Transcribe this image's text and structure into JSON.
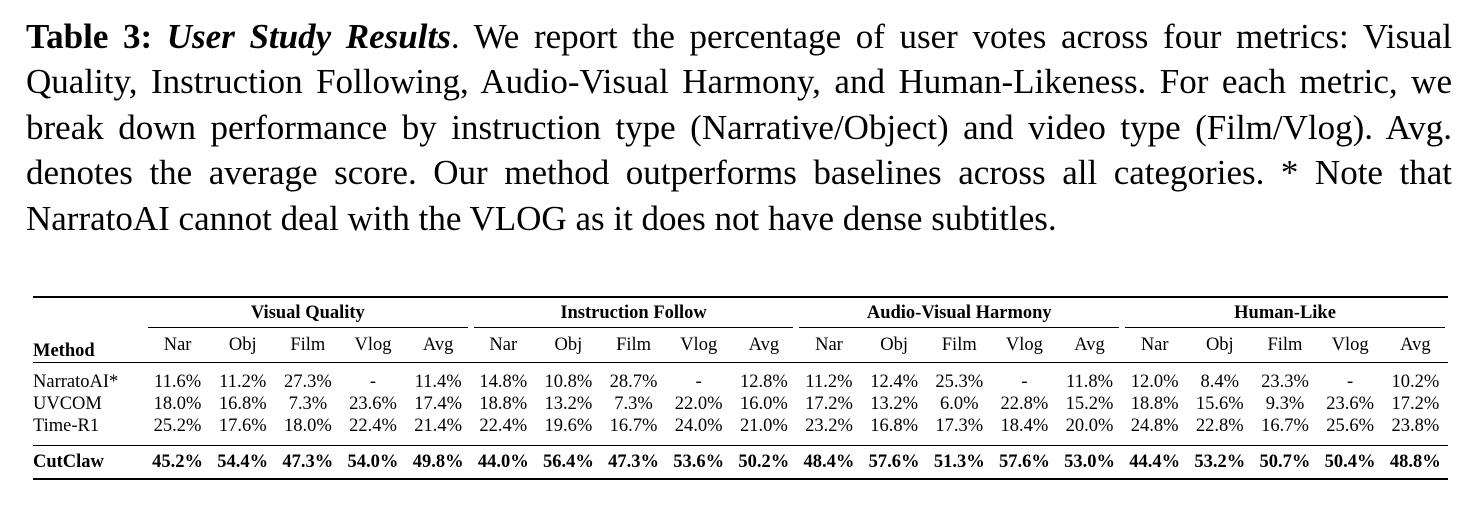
{
  "caption": {
    "label": "Table 3:",
    "title": "User Study Results",
    "body": ". We report the percentage of user votes across four metrics: Visual Quality, Instruction Following, Audio-Visual Harmony, and Human-Likeness. For each metric, we break down performance by instruction type (Narrative/Object) and video type (Film/Vlog). Avg. denotes the average score. Our method outperforms baselines across all categories. * Note that NarratoAI cannot deal with the VLOG as it does not have dense subtitles."
  },
  "table": {
    "method_header": "Method",
    "groups": [
      "Visual Quality",
      "Instruction Follow",
      "Audio-Visual Harmony",
      "Human-Like"
    ],
    "subheaders": [
      "Nar",
      "Obj",
      "Film",
      "Vlog",
      "Avg"
    ],
    "rows": [
      {
        "method": "NarratoAI*",
        "values": [
          "11.6%",
          "11.2%",
          "27.3%",
          "-",
          "11.4%",
          "14.8%",
          "10.8%",
          "28.7%",
          "-",
          "12.8%",
          "11.2%",
          "12.4%",
          "25.3%",
          "-",
          "11.8%",
          "12.0%",
          "8.4%",
          "23.3%",
          "-",
          "10.2%"
        ]
      },
      {
        "method": "UVCOM",
        "values": [
          "18.0%",
          "16.8%",
          "7.3%",
          "23.6%",
          "17.4%",
          "18.8%",
          "13.2%",
          "7.3%",
          "22.0%",
          "16.0%",
          "17.2%",
          "13.2%",
          "6.0%",
          "22.8%",
          "15.2%",
          "18.8%",
          "15.6%",
          "9.3%",
          "23.6%",
          "17.2%"
        ]
      },
      {
        "method": "Time-R1",
        "values": [
          "25.2%",
          "17.6%",
          "18.0%",
          "22.4%",
          "21.4%",
          "22.4%",
          "19.6%",
          "16.7%",
          "24.0%",
          "21.0%",
          "23.2%",
          "16.8%",
          "17.3%",
          "18.4%",
          "20.0%",
          "24.8%",
          "22.8%",
          "16.7%",
          "25.6%",
          "23.8%"
        ]
      }
    ],
    "best_row": {
      "method": "CutClaw",
      "values": [
        "45.2%",
        "54.4%",
        "47.3%",
        "54.0%",
        "49.8%",
        "44.0%",
        "56.4%",
        "47.3%",
        "53.6%",
        "50.2%",
        "48.4%",
        "57.6%",
        "51.3%",
        "57.6%",
        "53.0%",
        "44.4%",
        "53.2%",
        "50.7%",
        "50.4%",
        "48.8%"
      ]
    }
  }
}
